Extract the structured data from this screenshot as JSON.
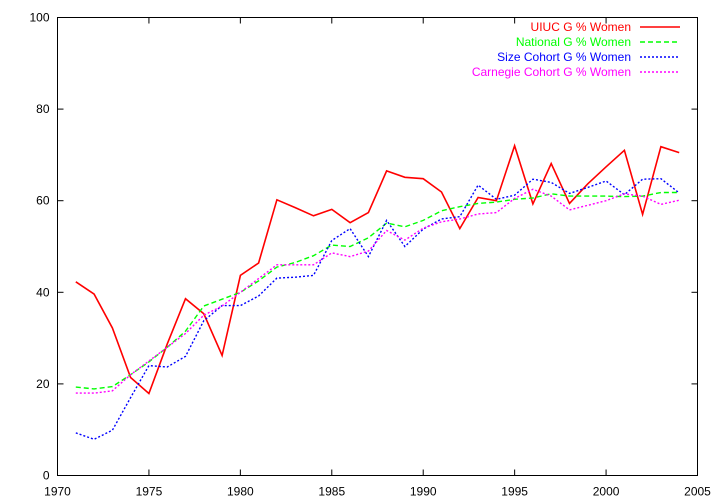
{
  "chart_data": {
    "type": "line",
    "title": "",
    "xlabel": "",
    "ylabel": "",
    "xlim": [
      1970,
      2005
    ],
    "ylim": [
      0,
      100
    ],
    "xticks": [
      1970,
      1975,
      1980,
      1985,
      1990,
      1995,
      2000,
      2005
    ],
    "yticks": [
      0,
      20,
      40,
      60,
      80,
      100
    ],
    "grid": false,
    "legend_position": "top-right",
    "x": [
      1971,
      1972,
      1973,
      1974,
      1975,
      1976,
      1977,
      1978,
      1979,
      1980,
      1981,
      1982,
      1983,
      1984,
      1985,
      1986,
      1987,
      1988,
      1989,
      1990,
      1991,
      1992,
      1993,
      1994,
      1995,
      1996,
      1997,
      1998,
      1999,
      2000,
      2001,
      2002,
      2003,
      2004
    ],
    "series": [
      {
        "name": "UIUC G % Women",
        "color": "#ff0000",
        "dash": "solid",
        "values": [
          42.3,
          39.6,
          32.2,
          21.4,
          17.9,
          28.7,
          38.6,
          35.3,
          26.2,
          43.7,
          46.4,
          60.2,
          58.5,
          56.7,
          58.1,
          55.2,
          57.4,
          66.5,
          65.1,
          64.8,
          61.9,
          53.9,
          60.7,
          60.0,
          72.0,
          59.3,
          68.1,
          59.4,
          63.7,
          67.4,
          71.0,
          57.0,
          71.8,
          70.5
        ]
      },
      {
        "name": "National G % Women",
        "color": "#00ff00",
        "dash": "dashed",
        "values": [
          19.3,
          18.9,
          19.4,
          22.0,
          24.8,
          28.0,
          31.5,
          37.0,
          38.5,
          40.0,
          42.5,
          45.5,
          46.5,
          48.0,
          50.3,
          50.0,
          51.9,
          55.1,
          54.3,
          55.7,
          57.8,
          58.7,
          59.4,
          59.7,
          60.3,
          60.6,
          61.5,
          61.0,
          61.0,
          61.0,
          60.9,
          61.0,
          61.8,
          61.8
        ]
      },
      {
        "name": "Size Cohort G % Women",
        "color": "#0000ff",
        "dash": "dotted",
        "values": [
          9.3,
          7.9,
          9.9,
          17.0,
          24.0,
          23.7,
          26.0,
          33.8,
          37.1,
          37.1,
          39.2,
          43.1,
          43.3,
          43.7,
          51.3,
          53.9,
          47.8,
          55.7,
          50.0,
          53.8,
          56.0,
          56.5,
          63.4,
          60.3,
          61.2,
          64.7,
          64.0,
          61.6,
          62.9,
          64.3,
          61.3,
          64.7,
          64.8,
          61.7
        ]
      },
      {
        "name": "Carnegie Cohort G % Women",
        "color": "#ff00ff",
        "dash": "dotted",
        "values": [
          18.0,
          18.0,
          18.5,
          22.0,
          25.0,
          28.0,
          31.0,
          35.0,
          37.0,
          40.0,
          43.0,
          46.0,
          46.0,
          46.0,
          48.6,
          47.8,
          49.0,
          53.5,
          51.4,
          54.0,
          55.4,
          56.0,
          57.1,
          57.4,
          60.5,
          62.5,
          61.0,
          58.0,
          59.0,
          60.0,
          61.5,
          61.0,
          59.2,
          60.1
        ]
      }
    ]
  }
}
